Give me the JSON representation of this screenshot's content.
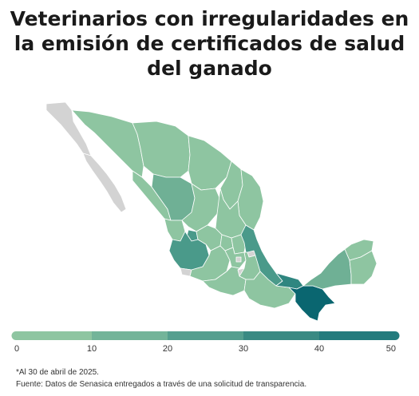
{
  "title": "Veterinarios con irregularidades en la emisión de certificados de salud del ganado",
  "legend": {
    "ticks": [
      "0",
      "10",
      "20",
      "30",
      "40",
      "50"
    ],
    "colors": [
      "#8ec5a1",
      "#73b499",
      "#559f8f",
      "#3a8a83",
      "#237b7d",
      "#0a6670"
    ]
  },
  "map_colors": {
    "no_data": "#d3d3d3",
    "low": "#8ec5a1",
    "mid": "#6fb095",
    "high": "#4a9a8a",
    "higher": "#2f8680",
    "max": "#0a6670",
    "border": "#ffffff"
  },
  "notes": {
    "date_note": "*Al 30 de abril de 2025.",
    "source": "Fuente: Datos de Senasica entregados a través de una solicitud de transparencia."
  }
}
